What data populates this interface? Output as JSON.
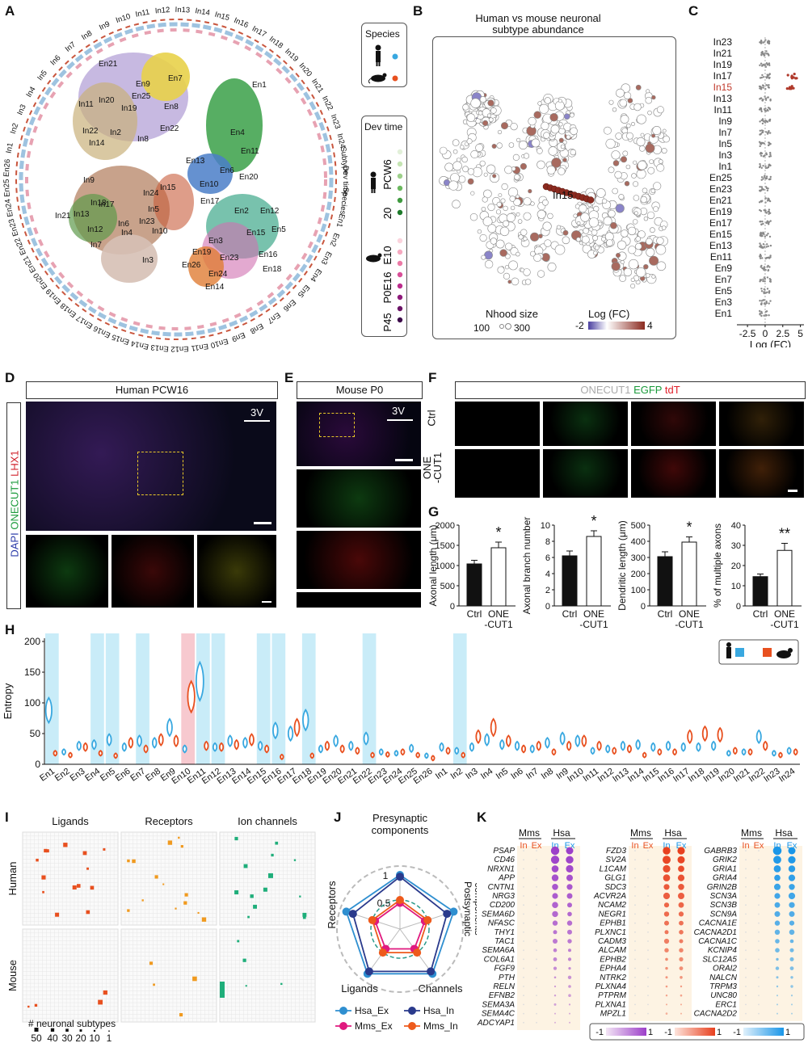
{
  "panels": {
    "A": "A",
    "B": "B",
    "C": "C",
    "D": "D",
    "E": "E",
    "F": "F",
    "G": "G",
    "H": "H",
    "I": "I",
    "J": "J",
    "K": "K"
  },
  "colors": {
    "hsa_ex": "#2f8fd0",
    "hsa_in": "#2a3a8c",
    "mms_ex": "#e0197f",
    "mms_in": "#ee5a1c",
    "human": "#39a8e0",
    "mouse": "#e8501f",
    "up": "#8b2a1f",
    "down": "#4a3fa0"
  },
  "panelA": {
    "circle_labels": [
      "In9",
      "In10",
      "In11",
      "In12",
      "In13",
      "In14",
      "In15",
      "In16",
      "In17",
      "In18",
      "In19",
      "In20",
      "In21",
      "In22",
      "In23",
      "In24",
      "Subtype",
      "Dev time",
      "Species",
      "En1",
      "En2",
      "En3",
      "En4",
      "En5",
      "En6",
      "En7",
      "En8",
      "En9",
      "En10",
      "En11",
      "En12",
      "En13",
      "En14",
      "En15",
      "En16",
      "En17",
      "En18",
      "En19",
      "En20",
      "En21",
      "En22",
      "En23",
      "En24",
      "En25",
      "En26",
      "In1",
      "In2",
      "In3",
      "In4",
      "In5",
      "In6",
      "In7",
      "In8"
    ],
    "cluster_labels": [
      "En21",
      "En9",
      "En7",
      "In20",
      "En25",
      "In11",
      "In19",
      "En8",
      "In22",
      "In2",
      "En22",
      "In14",
      "In8",
      "En1",
      "En4",
      "En11",
      "En13",
      "En6",
      "En20",
      "En10",
      "En17",
      "In9",
      "In15",
      "In24",
      "In18",
      "In17",
      "In5",
      "In13",
      "In21",
      "In6",
      "In23",
      "In12",
      "In4",
      "In10",
      "In7",
      "In3",
      "En2",
      "En12",
      "En5",
      "En15",
      "En3",
      "En16",
      "En19",
      "En23",
      "En26",
      "En18",
      "En24",
      "En14"
    ],
    "species_title": "Species",
    "dev_title": "Dev time",
    "dev_human": [
      "PCW6",
      "20"
    ],
    "dev_mouse": [
      "E10",
      "P0E16",
      "P45"
    ]
  },
  "panelB": {
    "title_line1": "Human vs mouse neuronal",
    "title_line2": "subtype abundance",
    "annot": "In15",
    "nhood_title": "Nhood size",
    "nhood_vals": [
      "100",
      "300"
    ],
    "logfc_title": "Log (FC)",
    "logfc_range": [
      "-2",
      "4"
    ]
  },
  "panelC": {
    "labels": [
      "In23",
      "In21",
      "In19",
      "In17",
      "In15",
      "In13",
      "In11",
      "In9",
      "In7",
      "In5",
      "In3",
      "In1",
      "En25",
      "En23",
      "En21",
      "En19",
      "En17",
      "En15",
      "En13",
      "En11",
      "En9",
      "En7",
      "En5",
      "En3",
      "En1"
    ],
    "highlight": "In15",
    "ticks": [
      "-2.5",
      "0",
      "2.5",
      "5"
    ],
    "xlabel": "Log (FC)"
  },
  "panelD": {
    "title": "Human PCW16",
    "orient": "3V",
    "ylabel_parts": [
      "DAPI",
      "ONECUT1",
      "LHX1"
    ]
  },
  "panelE": {
    "title": "Mouse P0",
    "orient": "3V"
  },
  "panelF": {
    "title_parts": [
      "ONECUT1",
      "EGFP",
      "tdT"
    ],
    "rows": [
      "Ctrl",
      "ONE\n-CUT1"
    ]
  },
  "chart_data": [
    {
      "type": "bar",
      "title": "",
      "ylabel": "Axonal length (μm)",
      "categories": [
        "Ctrl",
        "ONE\n-CUT1"
      ],
      "values": [
        1040,
        1440
      ],
      "errors": [
        90,
        140
      ],
      "ylim": [
        0,
        2000
      ],
      "ticks": [
        "0",
        "500",
        "1000",
        "1500",
        "2000"
      ],
      "sig": "*"
    },
    {
      "type": "bar",
      "title": "",
      "ylabel": "Axonal branch number",
      "categories": [
        "Ctrl",
        "ONE\n-CUT1"
      ],
      "values": [
        6.2,
        8.6
      ],
      "errors": [
        0.6,
        0.7
      ],
      "ylim": [
        0,
        10
      ],
      "ticks": [
        "0",
        "2",
        "4",
        "6",
        "8",
        "10"
      ],
      "sig": "*"
    },
    {
      "type": "bar",
      "title": "",
      "ylabel": "Dendritic length (μm)",
      "categories": [
        "Ctrl",
        "ONE\n-CUT1"
      ],
      "values": [
        305,
        395
      ],
      "errors": [
        30,
        32
      ],
      "ylim": [
        0,
        500
      ],
      "ticks": [
        "0",
        "100",
        "200",
        "300",
        "400",
        "500"
      ],
      "sig": "*"
    },
    {
      "type": "bar",
      "title": "",
      "ylabel": "% of multiple axons",
      "categories": [
        "Ctrl",
        "ONE\n-CUT1"
      ],
      "values": [
        14.5,
        27.5
      ],
      "errors": [
        1.3,
        3.5
      ],
      "ylim": [
        0,
        40
      ],
      "ticks": [
        "0",
        "10",
        "20",
        "30",
        "40"
      ],
      "sig": "**"
    }
  ],
  "panelH": {
    "ylabel": "Entropy",
    "ticks": [
      "0",
      "50",
      "100",
      "150",
      "200"
    ],
    "categories": [
      "En1",
      "En2",
      "En3",
      "En4",
      "En5",
      "En6",
      "En7",
      "En8",
      "En9",
      "En10",
      "En11",
      "En12",
      "En13",
      "En14",
      "En15",
      "En16",
      "En17",
      "En18",
      "En19",
      "En20",
      "En21",
      "En22",
      "En23",
      "En24",
      "En25",
      "En26",
      "In1",
      "In2",
      "In3",
      "In4",
      "In5",
      "In6",
      "In7",
      "In8",
      "In9",
      "In10",
      "In11",
      "In12",
      "In13",
      "In14",
      "In15",
      "In16",
      "In17",
      "In18",
      "In19",
      "In20",
      "In21",
      "In22",
      "In23",
      "In24"
    ],
    "human": [
      88,
      20,
      30,
      32,
      40,
      28,
      38,
      35,
      60,
      25,
      135,
      28,
      38,
      35,
      30,
      55,
      50,
      72,
      25,
      38,
      30,
      42,
      20,
      18,
      26,
      14,
      28,
      22,
      28,
      40,
      32,
      30,
      25,
      35,
      42,
      38,
      22,
      25,
      30,
      32,
      28,
      30,
      28,
      28,
      30,
      18,
      20,
      45,
      18,
      22
    ],
    "mouse": [
      18,
      15,
      28,
      18,
      14,
      35,
      25,
      40,
      38,
      110,
      30,
      28,
      32,
      40,
      25,
      12,
      60,
      14,
      30,
      25,
      22,
      15,
      16,
      20,
      15,
      10,
      22,
      15,
      45,
      60,
      38,
      25,
      30,
      20,
      30,
      38,
      30,
      22,
      25,
      15,
      20,
      20,
      45,
      50,
      48,
      22,
      20,
      30,
      15,
      20
    ],
    "highlight_blue": [
      "En1",
      "En4",
      "En5",
      "En7",
      "En11",
      "En12",
      "En15",
      "En16",
      "En18",
      "En22",
      "In2"
    ],
    "highlight_red": [
      "En10"
    ]
  },
  "panelI": {
    "cols": [
      "Ligands",
      "Receptors",
      "Ion channels"
    ],
    "rows": [
      "Human",
      "Mouse"
    ],
    "legend_title": "# neuronal subtypes",
    "legend_vals": [
      "50",
      "40",
      "30",
      "20",
      "10",
      "1"
    ]
  },
  "panelJ": {
    "axes": [
      "Presynaptic\ncomponents",
      "Postsynaptic\ncomponents",
      "Channels",
      "Ligands",
      "Receptors"
    ],
    "ticks": [
      "1",
      "0.5"
    ],
    "series": [
      {
        "name": "Hsa_Ex",
        "values": [
          0.93,
          0.97,
          0.95,
          0.95,
          0.97
        ]
      },
      {
        "name": "Hsa_In",
        "values": [
          0.9,
          0.85,
          0.9,
          0.9,
          0.85
        ]
      },
      {
        "name": "Mms_Ex",
        "values": [
          0.45,
          0.45,
          0.42,
          0.42,
          0.45
        ]
      },
      {
        "name": "Mms_In",
        "values": [
          0.5,
          0.5,
          0.5,
          0.5,
          0.5
        ]
      }
    ],
    "legend": [
      "Hsa_Ex",
      "Hsa_In",
      "Mms_Ex",
      "Mms_In"
    ]
  },
  "panelK": {
    "species": [
      "Mms",
      "Hsa"
    ],
    "types": [
      "In",
      "Ex"
    ],
    "genes1": [
      "PSAP",
      "CD46",
      "NRXN1",
      "APP",
      "CNTN1",
      "NRG3",
      "CD200",
      "SEMA6D",
      "NFASC",
      "THY1",
      "TAC1",
      "SEMA6A",
      "COL6A1",
      "FGF9",
      "PTH",
      "RELN",
      "EFNB2",
      "SEMA3A",
      "SEMA4C",
      "ADCYAP1"
    ],
    "genes2": [
      "FZD3",
      "SV2A",
      "L1CAM",
      "GLG1",
      "SDC3",
      "ACVR2A",
      "NCAM2",
      "NEGR1",
      "EPHB1",
      "PLXNC1",
      "CADM3",
      "ALCAM",
      "EPHB2",
      "EPHA4",
      "NTRK2",
      "PLXNA4",
      "PTPRM",
      "PLXNA1",
      "MPZL1"
    ],
    "genes3": [
      "GABRB3",
      "GRIK2",
      "GRIA1",
      "GRIA4",
      "GRIN2B",
      "SCN3A",
      "SCN3B",
      "SCN9A",
      "CACNA1E",
      "CACNA2D1",
      "CACNA1C",
      "KCNIP4",
      "SLC12A5",
      "ORAI2",
      "NALCN",
      "TRPM3",
      "UNC80",
      "ERC1",
      "CACNA2D2"
    ],
    "scale": [
      "-1",
      "1",
      "-1",
      "1",
      "-1",
      "1"
    ]
  }
}
